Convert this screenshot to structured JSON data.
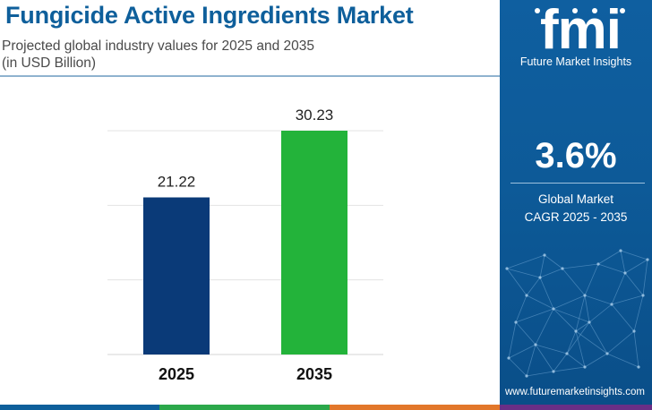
{
  "header": {
    "title": "Fungicide Active Ingredients Market",
    "subtitle_line1": "Projected global industry values for 2025 and 2035",
    "subtitle_line2": "(in USD Billion)"
  },
  "brand": {
    "logo_text": "fmi",
    "logo_subtitle": "Future Market Insights",
    "url": "www.futuremarketinsights.com"
  },
  "cagr": {
    "value": "3.6%",
    "label_line1": "Global Market",
    "label_line2": "CAGR 2025 - 2035"
  },
  "colors": {
    "title": "#0e5f9b",
    "bar_2025": "#0a3a78",
    "bar_2035": "#23b33a",
    "panel": "#0d5a98",
    "footer": [
      "#0e5f9b",
      "#2ba84a",
      "#e2772a",
      "#6a2f86"
    ]
  },
  "chart_data": {
    "type": "bar",
    "categories": [
      "2025",
      "2035"
    ],
    "values": [
      21.22,
      30.23
    ],
    "value_labels": [
      "21.22",
      "30.23"
    ],
    "ylim": [
      0,
      30.23
    ],
    "grid": true,
    "xlabel": "",
    "ylabel": ""
  }
}
